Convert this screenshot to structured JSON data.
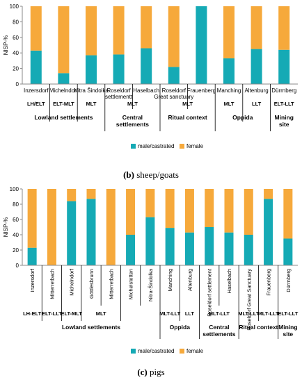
{
  "chart_data": [
    {
      "type": "bar",
      "stacked": true,
      "ylabel": "NISP-%",
      "ylim": [
        0,
        100
      ],
      "yticks": [
        0,
        20,
        40,
        60,
        80,
        100
      ],
      "grid": false,
      "legend": "bottom",
      "categories": [
        "Inzersdorf",
        "Michelndorf",
        "Nitra Šindolka",
        "Roseldorf settlementt",
        "Haselbach",
        "Roseldorf Great sanctuary",
        "Frauenberg",
        "Manching",
        "Altenburg",
        "Dürrnberg"
      ],
      "series": [
        {
          "name": "male/castrated",
          "color": "#15aab5",
          "values": [
            43,
            14,
            37,
            38,
            46,
            22,
            100,
            33,
            45,
            44
          ]
        },
        {
          "name": "female",
          "color": "#f6a93b",
          "values": [
            57,
            86,
            63,
            62,
            54,
            78,
            0,
            67,
            55,
            56
          ]
        }
      ],
      "periods": [
        "LH/ELT",
        "ELT-MLT",
        "MLT",
        "MLT",
        "MLT",
        "MLT",
        "LLT",
        "ELT-LLT"
      ],
      "groups": [
        "Lowland settlements",
        "Central settlements",
        "Ritual context",
        "Oppida",
        "Mining site"
      ],
      "caption_letter": "(b)",
      "caption_text": "sheep/goats"
    },
    {
      "type": "bar",
      "stacked": true,
      "ylabel": "NISP-%",
      "ylim": [
        0,
        100
      ],
      "yticks": [
        0,
        20,
        40,
        60,
        80,
        100
      ],
      "grid": false,
      "legend": "bottom",
      "categories": [
        "Inzersdorf",
        "Mitterretbach",
        "Michelndorf",
        "Göttlesbrunn",
        "Mitterretbach",
        "Michelstetten",
        "Nitra-Šindolka",
        "Manching",
        "Altenburg",
        "Roseldorf settlement",
        "Haselbach",
        "Roseldorf Great Sanctuary",
        "Frauenberg",
        "Dürrnberg"
      ],
      "series": [
        {
          "name": "male/castrated",
          "color": "#15aab5",
          "values": [
            23,
            0,
            84,
            87,
            0,
            40,
            63,
            49,
            43,
            50,
            43,
            40,
            87,
            35
          ]
        },
        {
          "name": "female",
          "color": "#f6a93b",
          "values": [
            77,
            100,
            16,
            13,
            100,
            60,
            37,
            51,
            57,
            50,
            57,
            60,
            13,
            65
          ]
        }
      ],
      "periods": [
        "LH-ELT",
        "ELT-LLT",
        "ELT-MLT",
        "MLT",
        "MLT-LLT",
        "LLT",
        "MLT-LLT",
        "MLT-LLT",
        "MLT-LLT",
        "ELT-LLT"
      ],
      "groups": [
        "Lowland settlements",
        "Oppida",
        "Central settlements",
        "Ritual context",
        "Mining site"
      ],
      "caption_letter": "(c)",
      "caption_text": "pigs"
    }
  ]
}
